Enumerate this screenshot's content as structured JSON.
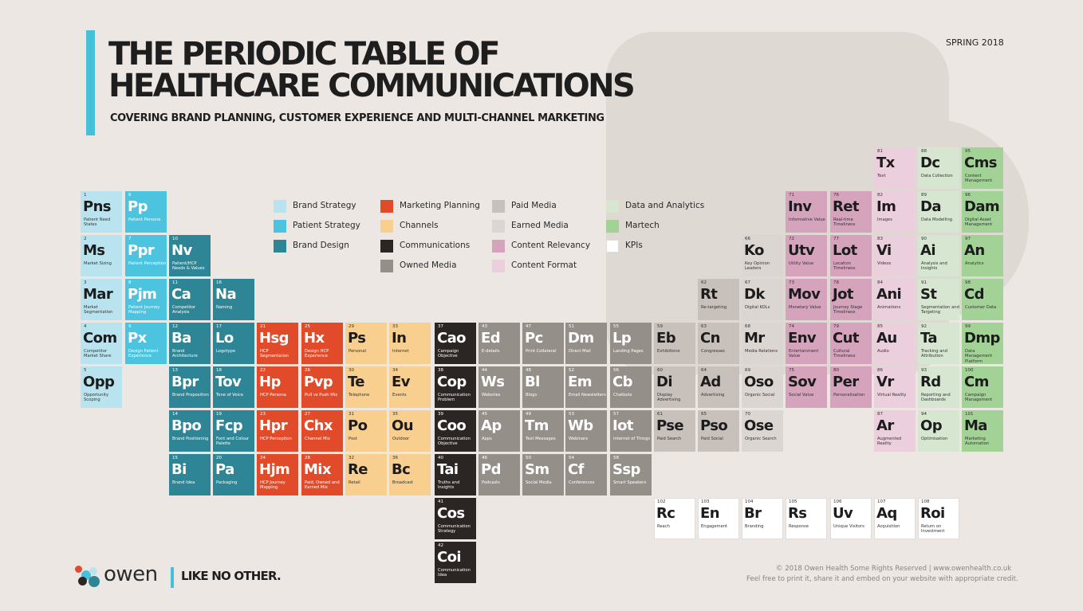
{
  "header": {
    "title_line1": "THE PERIODIC TABLE OF",
    "title_line2": "HEALTHCARE COMMUNICATIONS",
    "subtitle": "COVERING BRAND PLANNING, CUSTOMER EXPERIENCE AND MULTI-CHANNEL MARKETING",
    "season": "SPRING 2018"
  },
  "colors": {
    "bs": "#b9e4ef",
    "ps": "#4cc3df",
    "bd": "#2e8596",
    "mp": "#e14b2a",
    "ch": "#f8cf8e",
    "co": "#2b2523",
    "om": "#958f8a",
    "pm": "#c8c0bb",
    "em": "#dcd6d2",
    "cr": "#d6a3bd",
    "cf": "#eccfdc",
    "da": "#d6e6d0",
    "mt": "#a2d296",
    "kp": "#ffffff"
  },
  "legend": [
    {
      "label": "Brand Strategy",
      "color": "#b9e4ef"
    },
    {
      "label": "Patient Strategy",
      "color": "#4cc3df"
    },
    {
      "label": "Brand Design",
      "color": "#2e8596"
    },
    {
      "label": "Marketing Planning",
      "color": "#e14b2a"
    },
    {
      "label": "Channels",
      "color": "#f8cf8e"
    },
    {
      "label": "Communications",
      "color": "#2b2523"
    },
    {
      "label": "Owned Media",
      "color": "#958f8a"
    },
    {
      "label": "Paid Media",
      "color": "#c8c0bb"
    },
    {
      "label": "Earned Media",
      "color": "#dcd6d2"
    },
    {
      "label": "Content Relevancy",
      "color": "#d6a3bd"
    },
    {
      "label": "Content Format",
      "color": "#eccfdc"
    },
    {
      "label": "Data and Analytics",
      "color": "#d6e6d0"
    },
    {
      "label": "Martech",
      "color": "#a2d296"
    },
    {
      "label": "KPIs",
      "color": "#ffffff"
    }
  ],
  "elements": [
    {
      "n": "1",
      "s": "Pns",
      "name": "Patient Need States",
      "c": "bs"
    },
    {
      "n": "2",
      "s": "Ms",
      "name": "Market Sizing",
      "c": "bs"
    },
    {
      "n": "3",
      "s": "Mar",
      "name": "Market Segmentation",
      "c": "bs"
    },
    {
      "n": "4",
      "s": "Com",
      "name": "Competitor Market Share",
      "c": "bs"
    },
    {
      "n": "5",
      "s": "Opp",
      "name": "Opportunity Scoping",
      "c": "bs"
    },
    {
      "n": "6",
      "s": "Pp",
      "name": "Patient Persona",
      "c": "ps"
    },
    {
      "n": "7",
      "s": "Ppr",
      "name": "Patient Perception",
      "c": "ps"
    },
    {
      "n": "8",
      "s": "Pjm",
      "name": "Patient Journey Mapping",
      "c": "ps"
    },
    {
      "n": "9",
      "s": "Px",
      "name": "Design Patient Experience",
      "c": "ps"
    },
    {
      "n": "10",
      "s": "Nv",
      "name": "Patient/HCP Needs & Values",
      "c": "bd"
    },
    {
      "n": "11",
      "s": "Ca",
      "name": "Competitor Analysis",
      "c": "bd"
    },
    {
      "n": "12",
      "s": "Ba",
      "name": "Brand Architecture",
      "c": "bd"
    },
    {
      "n": "13",
      "s": "Bpr",
      "name": "Brand Proposition",
      "c": "bd"
    },
    {
      "n": "14",
      "s": "Bpo",
      "name": "Brand Positioning",
      "c": "bd"
    },
    {
      "n": "15",
      "s": "Bi",
      "name": "Brand Idea",
      "c": "bd"
    },
    {
      "n": "16",
      "s": "Na",
      "name": "Naming",
      "c": "bd"
    },
    {
      "n": "17",
      "s": "Lo",
      "name": "Logotype",
      "c": "bd"
    },
    {
      "n": "18",
      "s": "Tov",
      "name": "Tone of Voice",
      "c": "bd"
    },
    {
      "n": "19",
      "s": "Fcp",
      "name": "Font and Colour Palette",
      "c": "bd"
    },
    {
      "n": "20",
      "s": "Pa",
      "name": "Packaging",
      "c": "bd"
    },
    {
      "n": "21",
      "s": "Hsg",
      "name": "HCP Segmentation",
      "c": "mp"
    },
    {
      "n": "22",
      "s": "Hp",
      "name": "HCP Persona",
      "c": "mp"
    },
    {
      "n": "23",
      "s": "Hpr",
      "name": "HCP Perception",
      "c": "mp"
    },
    {
      "n": "24",
      "s": "Hjm",
      "name": "HCP Journey Mapping",
      "c": "mp"
    },
    {
      "n": "25",
      "s": "Hx",
      "name": "Design HCP Experience",
      "c": "mp"
    },
    {
      "n": "26",
      "s": "Pvp",
      "name": "Pull vs Push Mix",
      "c": "mp"
    },
    {
      "n": "27",
      "s": "Chx",
      "name": "Channel Mix",
      "c": "mp"
    },
    {
      "n": "28",
      "s": "Mix",
      "name": "Paid, Owned and Earned Mix",
      "c": "mp"
    },
    {
      "n": "29",
      "s": "Ps",
      "name": "Personal",
      "c": "ch"
    },
    {
      "n": "30",
      "s": "Te",
      "name": "Telephone",
      "c": "ch"
    },
    {
      "n": "31",
      "s": "Po",
      "name": "Post",
      "c": "ch"
    },
    {
      "n": "32",
      "s": "Re",
      "name": "Retail",
      "c": "ch"
    },
    {
      "n": "33",
      "s": "In",
      "name": "Internet",
      "c": "ch"
    },
    {
      "n": "34",
      "s": "Ev",
      "name": "Events",
      "c": "ch"
    },
    {
      "n": "35",
      "s": "Ou",
      "name": "Outdoor",
      "c": "ch"
    },
    {
      "n": "36",
      "s": "Bc",
      "name": "Broadcast",
      "c": "ch"
    },
    {
      "n": "37",
      "s": "Cao",
      "name": "Campaign Objective",
      "c": "co"
    },
    {
      "n": "38",
      "s": "Cop",
      "name": "Communication Problem",
      "c": "co"
    },
    {
      "n": "39",
      "s": "Coo",
      "name": "Communication Objective",
      "c": "co"
    },
    {
      "n": "40",
      "s": "Tai",
      "name": "Truths and Insights",
      "c": "co"
    },
    {
      "n": "41",
      "s": "Cos",
      "name": "Communication Strategy",
      "c": "co"
    },
    {
      "n": "42",
      "s": "Coi",
      "name": "Communication Idea",
      "c": "co"
    },
    {
      "n": "43",
      "s": "Ed",
      "name": "E-details",
      "c": "om"
    },
    {
      "n": "44",
      "s": "Ws",
      "name": "Websites",
      "c": "om"
    },
    {
      "n": "45",
      "s": "Ap",
      "name": "Apps",
      "c": "om"
    },
    {
      "n": "46",
      "s": "Pd",
      "name": "Podcasts",
      "c": "om"
    },
    {
      "n": "47",
      "s": "Pc",
      "name": "Print Collateral",
      "c": "om"
    },
    {
      "n": "48",
      "s": "Bl",
      "name": "Blogs",
      "c": "om"
    },
    {
      "n": "49",
      "s": "Tm",
      "name": "Text Messages",
      "c": "om"
    },
    {
      "n": "50",
      "s": "Sm",
      "name": "Social Media",
      "c": "om"
    },
    {
      "n": "51",
      "s": "Dm",
      "name": "Direct Mail",
      "c": "om"
    },
    {
      "n": "52",
      "s": "Em",
      "name": "Email Newsletters",
      "c": "om"
    },
    {
      "n": "53",
      "s": "Wb",
      "name": "Webinars",
      "c": "om"
    },
    {
      "n": "54",
      "s": "Cf",
      "name": "Conferences",
      "c": "om"
    },
    {
      "n": "55",
      "s": "Lp",
      "name": "Landing Pages",
      "c": "om"
    },
    {
      "n": "56",
      "s": "Cb",
      "name": "Chatbots",
      "c": "om"
    },
    {
      "n": "57",
      "s": "Iot",
      "name": "Internet of Things",
      "c": "om"
    },
    {
      "n": "58",
      "s": "Ssp",
      "name": "Smart Speakers",
      "c": "om"
    },
    {
      "n": "59",
      "s": "Eb",
      "name": "Exhibitions",
      "c": "pm"
    },
    {
      "n": "60",
      "s": "Di",
      "name": "Display Advertising",
      "c": "pm"
    },
    {
      "n": "61",
      "s": "Pse",
      "name": "Paid Search",
      "c": "pm"
    },
    {
      "n": "62",
      "s": "Rt",
      "name": "Re-targeting",
      "c": "pm"
    },
    {
      "n": "63",
      "s": "Cn",
      "name": "Congresses",
      "c": "pm"
    },
    {
      "n": "64",
      "s": "Ad",
      "name": "Advertising",
      "c": "pm"
    },
    {
      "n": "65",
      "s": "Pso",
      "name": "Paid Social",
      "c": "pm"
    },
    {
      "n": "66",
      "s": "Ko",
      "name": "Key Opinion Leaders",
      "c": "em"
    },
    {
      "n": "67",
      "s": "Dk",
      "name": "Digital KOLs",
      "c": "em"
    },
    {
      "n": "68",
      "s": "Mr",
      "name": "Media Relations",
      "c": "em"
    },
    {
      "n": "69",
      "s": "Oso",
      "name": "Organic Social",
      "c": "em"
    },
    {
      "n": "70",
      "s": "Ose",
      "name": "Organic Search",
      "c": "em"
    },
    {
      "n": "71",
      "s": "Inv",
      "name": "Informative Value",
      "c": "cr"
    },
    {
      "n": "72",
      "s": "Utv",
      "name": "Utility Value",
      "c": "cr"
    },
    {
      "n": "73",
      "s": "Mov",
      "name": "Monetary Value",
      "c": "cr"
    },
    {
      "n": "74",
      "s": "Env",
      "name": "Entertainment Value",
      "c": "cr"
    },
    {
      "n": "75",
      "s": "Sov",
      "name": "Social Value",
      "c": "cr"
    },
    {
      "n": "76",
      "s": "Ret",
      "name": "Real-time Timeliness",
      "c": "cr"
    },
    {
      "n": "77",
      "s": "Lot",
      "name": "Location Timeliness",
      "c": "cr"
    },
    {
      "n": "78",
      "s": "Jot",
      "name": "Journey Stage Timeliness",
      "c": "cr"
    },
    {
      "n": "79",
      "s": "Cut",
      "name": "Cultural Timeliness",
      "c": "cr"
    },
    {
      "n": "80",
      "s": "Per",
      "name": "Personalisation",
      "c": "cr"
    },
    {
      "n": "81",
      "s": "Tx",
      "name": "Text",
      "c": "cf"
    },
    {
      "n": "82",
      "s": "Im",
      "name": "Images",
      "c": "cf"
    },
    {
      "n": "83",
      "s": "Vi",
      "name": "Videos",
      "c": "cf"
    },
    {
      "n": "84",
      "s": "Ani",
      "name": "Animations",
      "c": "cf"
    },
    {
      "n": "85",
      "s": "Au",
      "name": "Audio",
      "c": "cf"
    },
    {
      "n": "86",
      "s": "Vr",
      "name": "Virtual Reality",
      "c": "cf"
    },
    {
      "n": "87",
      "s": "Ar",
      "name": "Augmented Reality",
      "c": "cf"
    },
    {
      "n": "88",
      "s": "Dc",
      "name": "Data Collection",
      "c": "da"
    },
    {
      "n": "89",
      "s": "Da",
      "name": "Data Modelling",
      "c": "da"
    },
    {
      "n": "90",
      "s": "Ai",
      "name": "Analysis and Insights",
      "c": "da"
    },
    {
      "n": "91",
      "s": "St",
      "name": "Segmentation and Targeting",
      "c": "da"
    },
    {
      "n": "92",
      "s": "Ta",
      "name": "Tracking and Attribution",
      "c": "da"
    },
    {
      "n": "93",
      "s": "Rd",
      "name": "Reporting and Dashboards",
      "c": "da"
    },
    {
      "n": "94",
      "s": "Op",
      "name": "Optimisation",
      "c": "da"
    },
    {
      "n": "95",
      "s": "Cms",
      "name": "Content Management",
      "c": "mt"
    },
    {
      "n": "96",
      "s": "Dam",
      "name": "Digital Asset Management",
      "c": "mt"
    },
    {
      "n": "97",
      "s": "An",
      "name": "Analytics",
      "c": "mt"
    },
    {
      "n": "98",
      "s": "Cd",
      "name": "Customer Data",
      "c": "mt"
    },
    {
      "n": "99",
      "s": "Dmp",
      "name": "Data Management Platform",
      "c": "mt"
    },
    {
      "n": "100",
      "s": "Cm",
      "name": "Campaign Management",
      "c": "mt"
    },
    {
      "n": "101",
      "s": "Ma",
      "name": "Marketing Automation",
      "c": "mt"
    },
    {
      "n": "102",
      "s": "Rc",
      "name": "Reach",
      "c": "kp"
    },
    {
      "n": "103",
      "s": "En",
      "name": "Engagement",
      "c": "kp"
    },
    {
      "n": "104",
      "s": "Br",
      "name": "Branding",
      "c": "kp"
    },
    {
      "n": "105",
      "s": "Rs",
      "name": "Response",
      "c": "kp"
    },
    {
      "n": "106",
      "s": "Uv",
      "name": "Unique Visitors",
      "c": "kp"
    },
    {
      "n": "107",
      "s": "Aq",
      "name": "Acquisition",
      "c": "kp"
    },
    {
      "n": "108",
      "s": "Roi",
      "name": "Return on Investment",
      "c": "kp"
    }
  ],
  "footer": {
    "brand": "owen",
    "tagline": "LIKE NO OTHER.",
    "copyright": "© 2018 Owen Health Some Rights Reserved  |  www.owenhealth.co.uk",
    "note": "Feel free to print it, share it and embed on your website with appropriate credit."
  }
}
